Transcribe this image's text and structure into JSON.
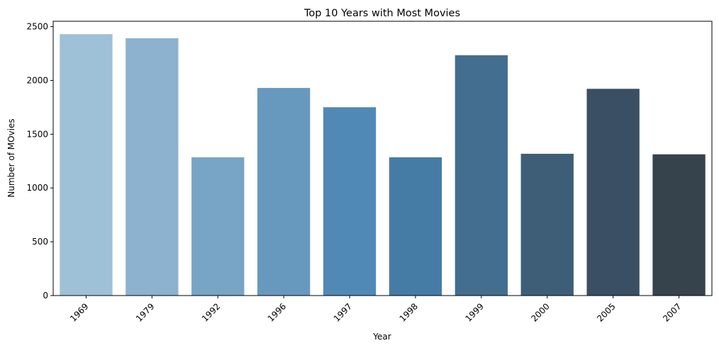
{
  "chart_data": {
    "type": "bar",
    "title": "Top 10 Years with Most Movies",
    "xlabel": "Year",
    "ylabel": "Number of MOvies",
    "categories": [
      "1969",
      "1979",
      "1992",
      "1996",
      "1997",
      "1998",
      "1999",
      "2000",
      "2005",
      "2007"
    ],
    "values": [
      2430,
      2392,
      1285,
      1930,
      1751,
      1285,
      2234,
      1318,
      1922,
      1313
    ],
    "yticks": [
      "0",
      "500",
      "1000",
      "1500",
      "2000",
      "2500"
    ],
    "ylim": [
      0,
      2550
    ],
    "grid": false,
    "legend": "none",
    "xtick_rotation": "45 degrees",
    "colors": [
      "#9fc1d7",
      "#8cb2cf",
      "#78a5c6",
      "#6799bf",
      "#5189b6",
      "#457ca6",
      "#436e8f",
      "#3e5e78",
      "#3a4f64",
      "#36434d"
    ]
  }
}
